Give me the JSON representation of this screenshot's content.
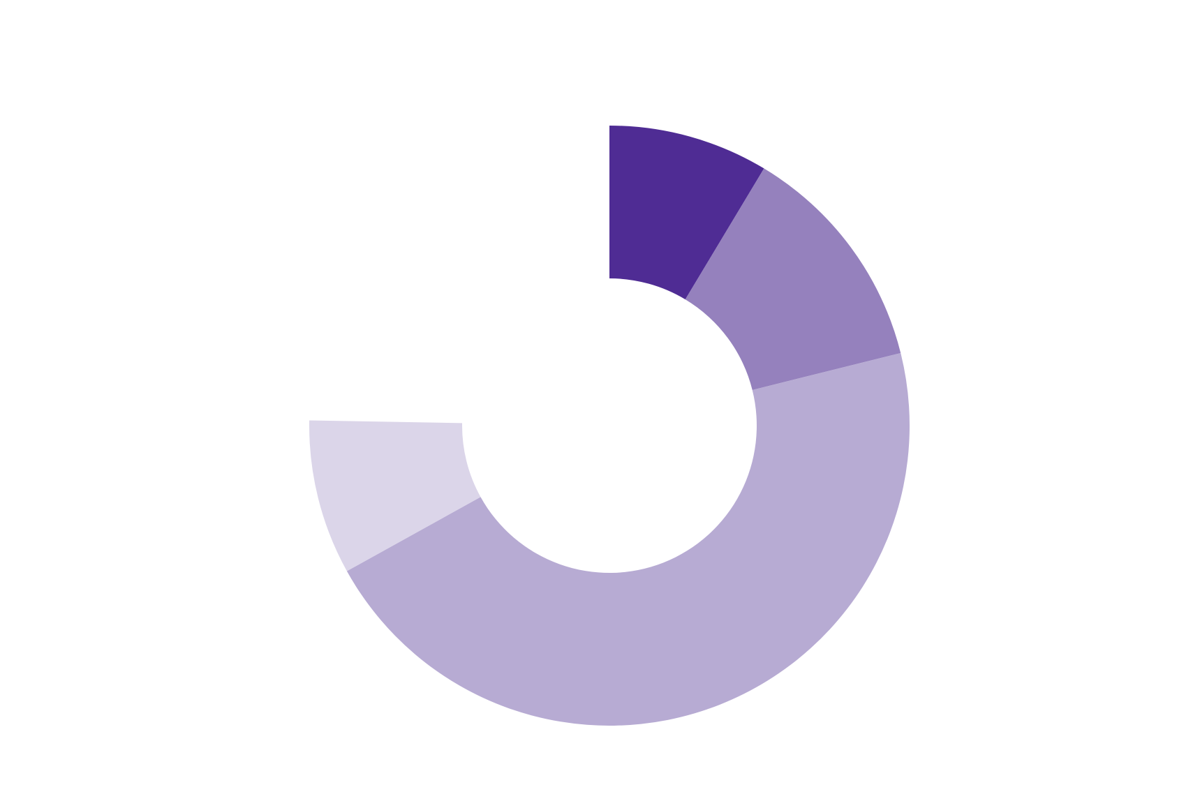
{
  "chart_data": {
    "type": "pie",
    "variant": "donut",
    "title": "",
    "start_angle_deg": 0,
    "direction": "clockwise",
    "total_degrees": 271,
    "legend": "none",
    "slices": [
      {
        "value": 31,
        "color": "#4f2c94"
      },
      {
        "value": 45,
        "color": "#9581bd"
      },
      {
        "value": 165,
        "color": "#b7abd3"
      },
      {
        "value": 30,
        "color": "#dbd5e9"
      }
    ]
  }
}
